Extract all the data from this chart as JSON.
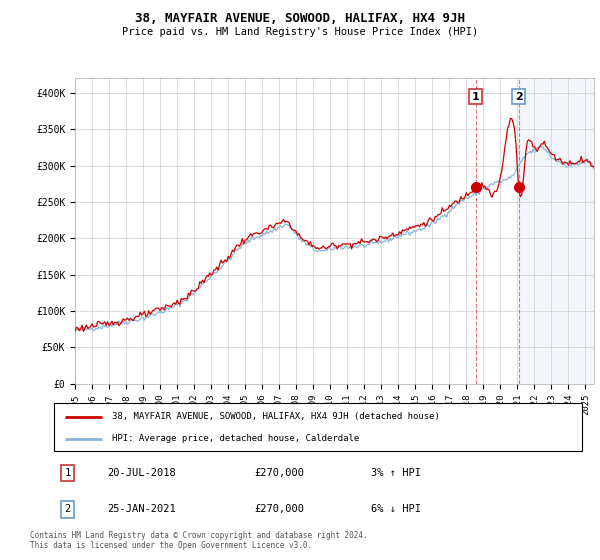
{
  "title": "38, MAYFAIR AVENUE, SOWOOD, HALIFAX, HX4 9JH",
  "subtitle": "Price paid vs. HM Land Registry's House Price Index (HPI)",
  "ylabel_ticks": [
    "£0",
    "£50K",
    "£100K",
    "£150K",
    "£200K",
    "£250K",
    "£300K",
    "£350K",
    "£400K"
  ],
  "ytick_values": [
    0,
    50000,
    100000,
    150000,
    200000,
    250000,
    300000,
    350000,
    400000
  ],
  "ylim": [
    0,
    420000
  ],
  "xlim_start": 1995.0,
  "xlim_end": 2025.5,
  "hpi_color": "#89b4d9",
  "price_color": "#cc0000",
  "marker1_date": 2018.54,
  "marker1_price": 270000,
  "marker2_date": 2021.07,
  "marker2_price": 270000,
  "transaction1": [
    "1",
    "20-JUL-2018",
    "£270,000",
    "3% ↑ HPI"
  ],
  "transaction2": [
    "2",
    "25-JAN-2021",
    "£270,000",
    "6% ↓ HPI"
  ],
  "legend_label1": "38, MAYFAIR AVENUE, SOWOOD, HALIFAX, HX4 9JH (detached house)",
  "legend_label2": "HPI: Average price, detached house, Calderdale",
  "footer": "Contains HM Land Registry data © Crown copyright and database right 2024.\nThis data is licensed under the Open Government Licence v3.0.",
  "xtick_years": [
    1995,
    1996,
    1997,
    1998,
    1999,
    2000,
    2001,
    2002,
    2003,
    2004,
    2005,
    2006,
    2007,
    2008,
    2009,
    2010,
    2011,
    2012,
    2013,
    2014,
    2015,
    2016,
    2017,
    2018,
    2019,
    2020,
    2021,
    2022,
    2023,
    2024,
    2025
  ],
  "background_color": "#ffffff",
  "span_start": 2021.07,
  "span_end": 2025.5
}
